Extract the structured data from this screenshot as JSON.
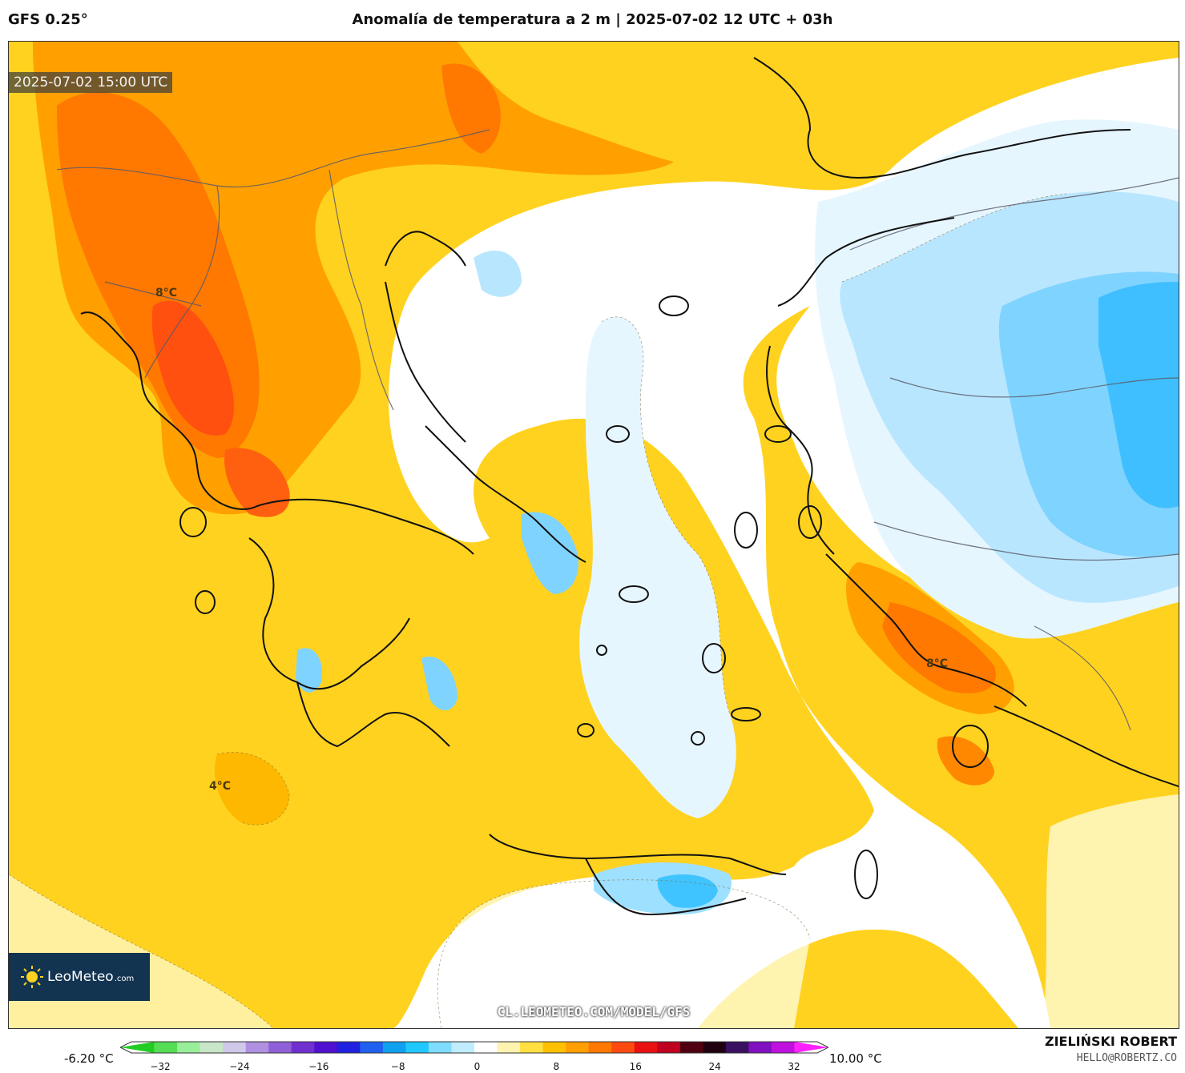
{
  "header": {
    "model": "GFS 0.25°",
    "title": "Anomalía de temperatura a 2 m | 2025-07-02 12 UTC + 03h"
  },
  "map": {
    "valid_time": "2025-07-02 15:00 UTC",
    "watermark": "CL.LEOMETEO.COM/MODEL/GFS",
    "labels": [
      "8°C",
      "4°C",
      "8°C"
    ],
    "logo": {
      "name": "LeoMeteo",
      "suffix": ".com"
    }
  },
  "colorbar": {
    "min_label": "-6.20 °C",
    "max_label": "10.00 °C",
    "ticks": [
      "−32",
      "−24",
      "−16",
      "−8",
      "0",
      "8",
      "16",
      "24",
      "32"
    ],
    "colors": [
      "#22cc22",
      "#55dd55",
      "#99ee99",
      "#c8e6c8",
      "#d0c8e8",
      "#b090e0",
      "#9060d8",
      "#7030d0",
      "#5010d0",
      "#2020e0",
      "#2060f0",
      "#10a0f0",
      "#20c8ff",
      "#80dcff",
      "#c0ecff",
      "#ffffff",
      "#fff3b0",
      "#ffe040",
      "#ffc000",
      "#ffa000",
      "#ff7800",
      "#ff4a10",
      "#e81010",
      "#c00020",
      "#500010",
      "#200010",
      "#3a1060",
      "#8010c0",
      "#c010e0",
      "#ff20ff"
    ]
  },
  "credits": {
    "author": "ZIELIŃSKI ROBERT",
    "email": "HELLO@ROBERTZ.CO"
  }
}
